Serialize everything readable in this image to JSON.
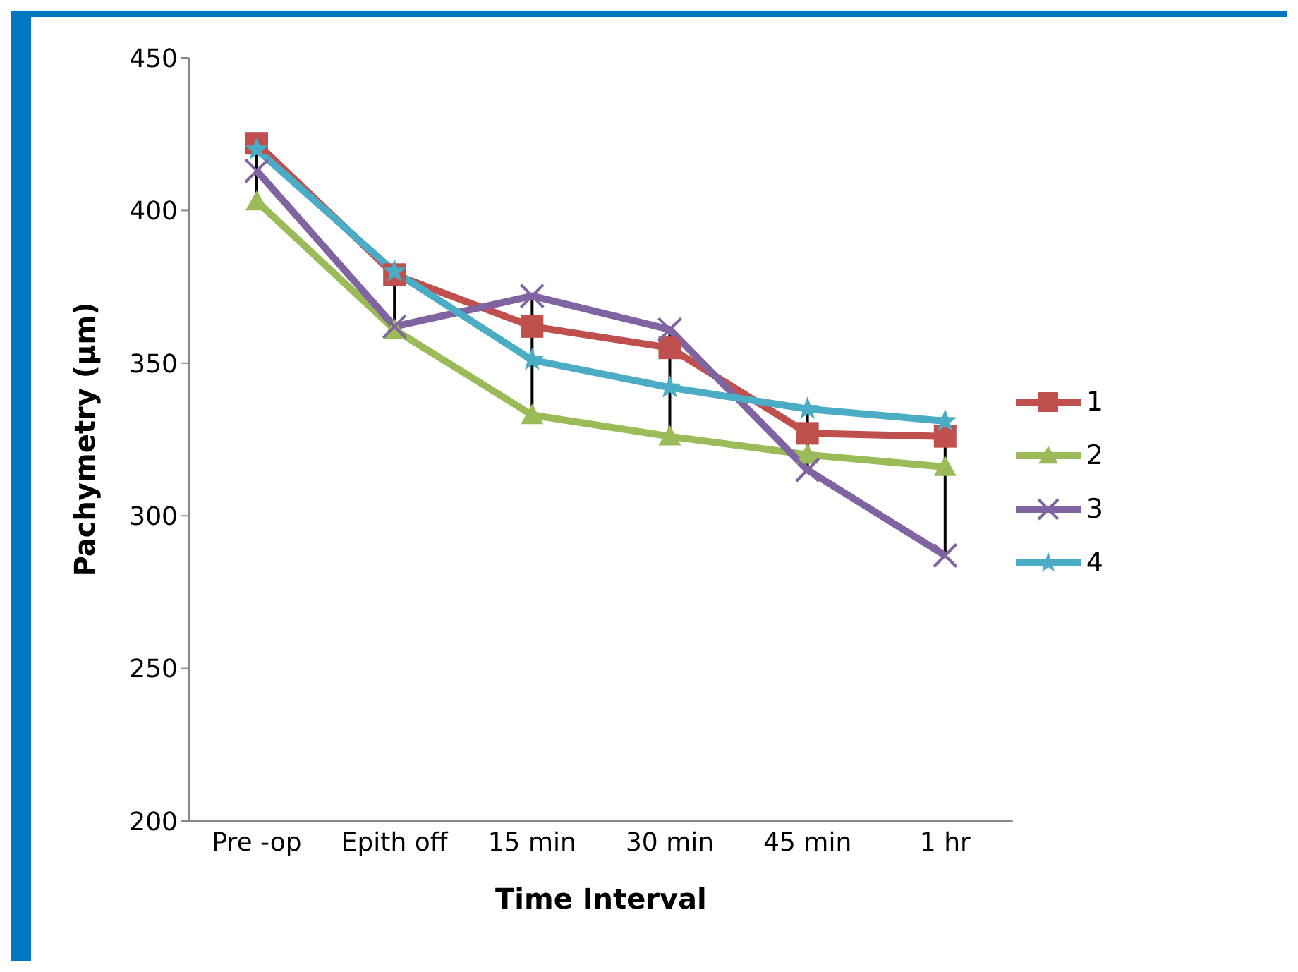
{
  "chart_data": {
    "type": "line",
    "xlabel": "Time Interval",
    "ylabel": "Pachymetry (µm)",
    "categories": [
      "Pre -op",
      "Epith off",
      "15 min",
      "30 min",
      "45 min",
      "1 hr"
    ],
    "series": [
      {
        "name": "1",
        "color": "#c0504d",
        "marker": "square",
        "values": [
          422,
          379,
          362,
          355,
          327,
          326
        ]
      },
      {
        "name": "2",
        "color": "#9bbb59",
        "marker": "triangle",
        "values": [
          403,
          361,
          333,
          326,
          320,
          316
        ]
      },
      {
        "name": "3",
        "color": "#8064a2",
        "marker": "cross",
        "values": [
          413,
          362,
          372,
          361,
          315,
          287
        ]
      },
      {
        "name": "4",
        "color": "#4bacc6",
        "marker": "star",
        "values": [
          420,
          380,
          351,
          342,
          335,
          331
        ]
      }
    ],
    "ylim": [
      200,
      450
    ],
    "yticks": [
      200,
      250,
      300,
      350,
      400,
      450
    ],
    "grid": false,
    "legend": "right"
  }
}
